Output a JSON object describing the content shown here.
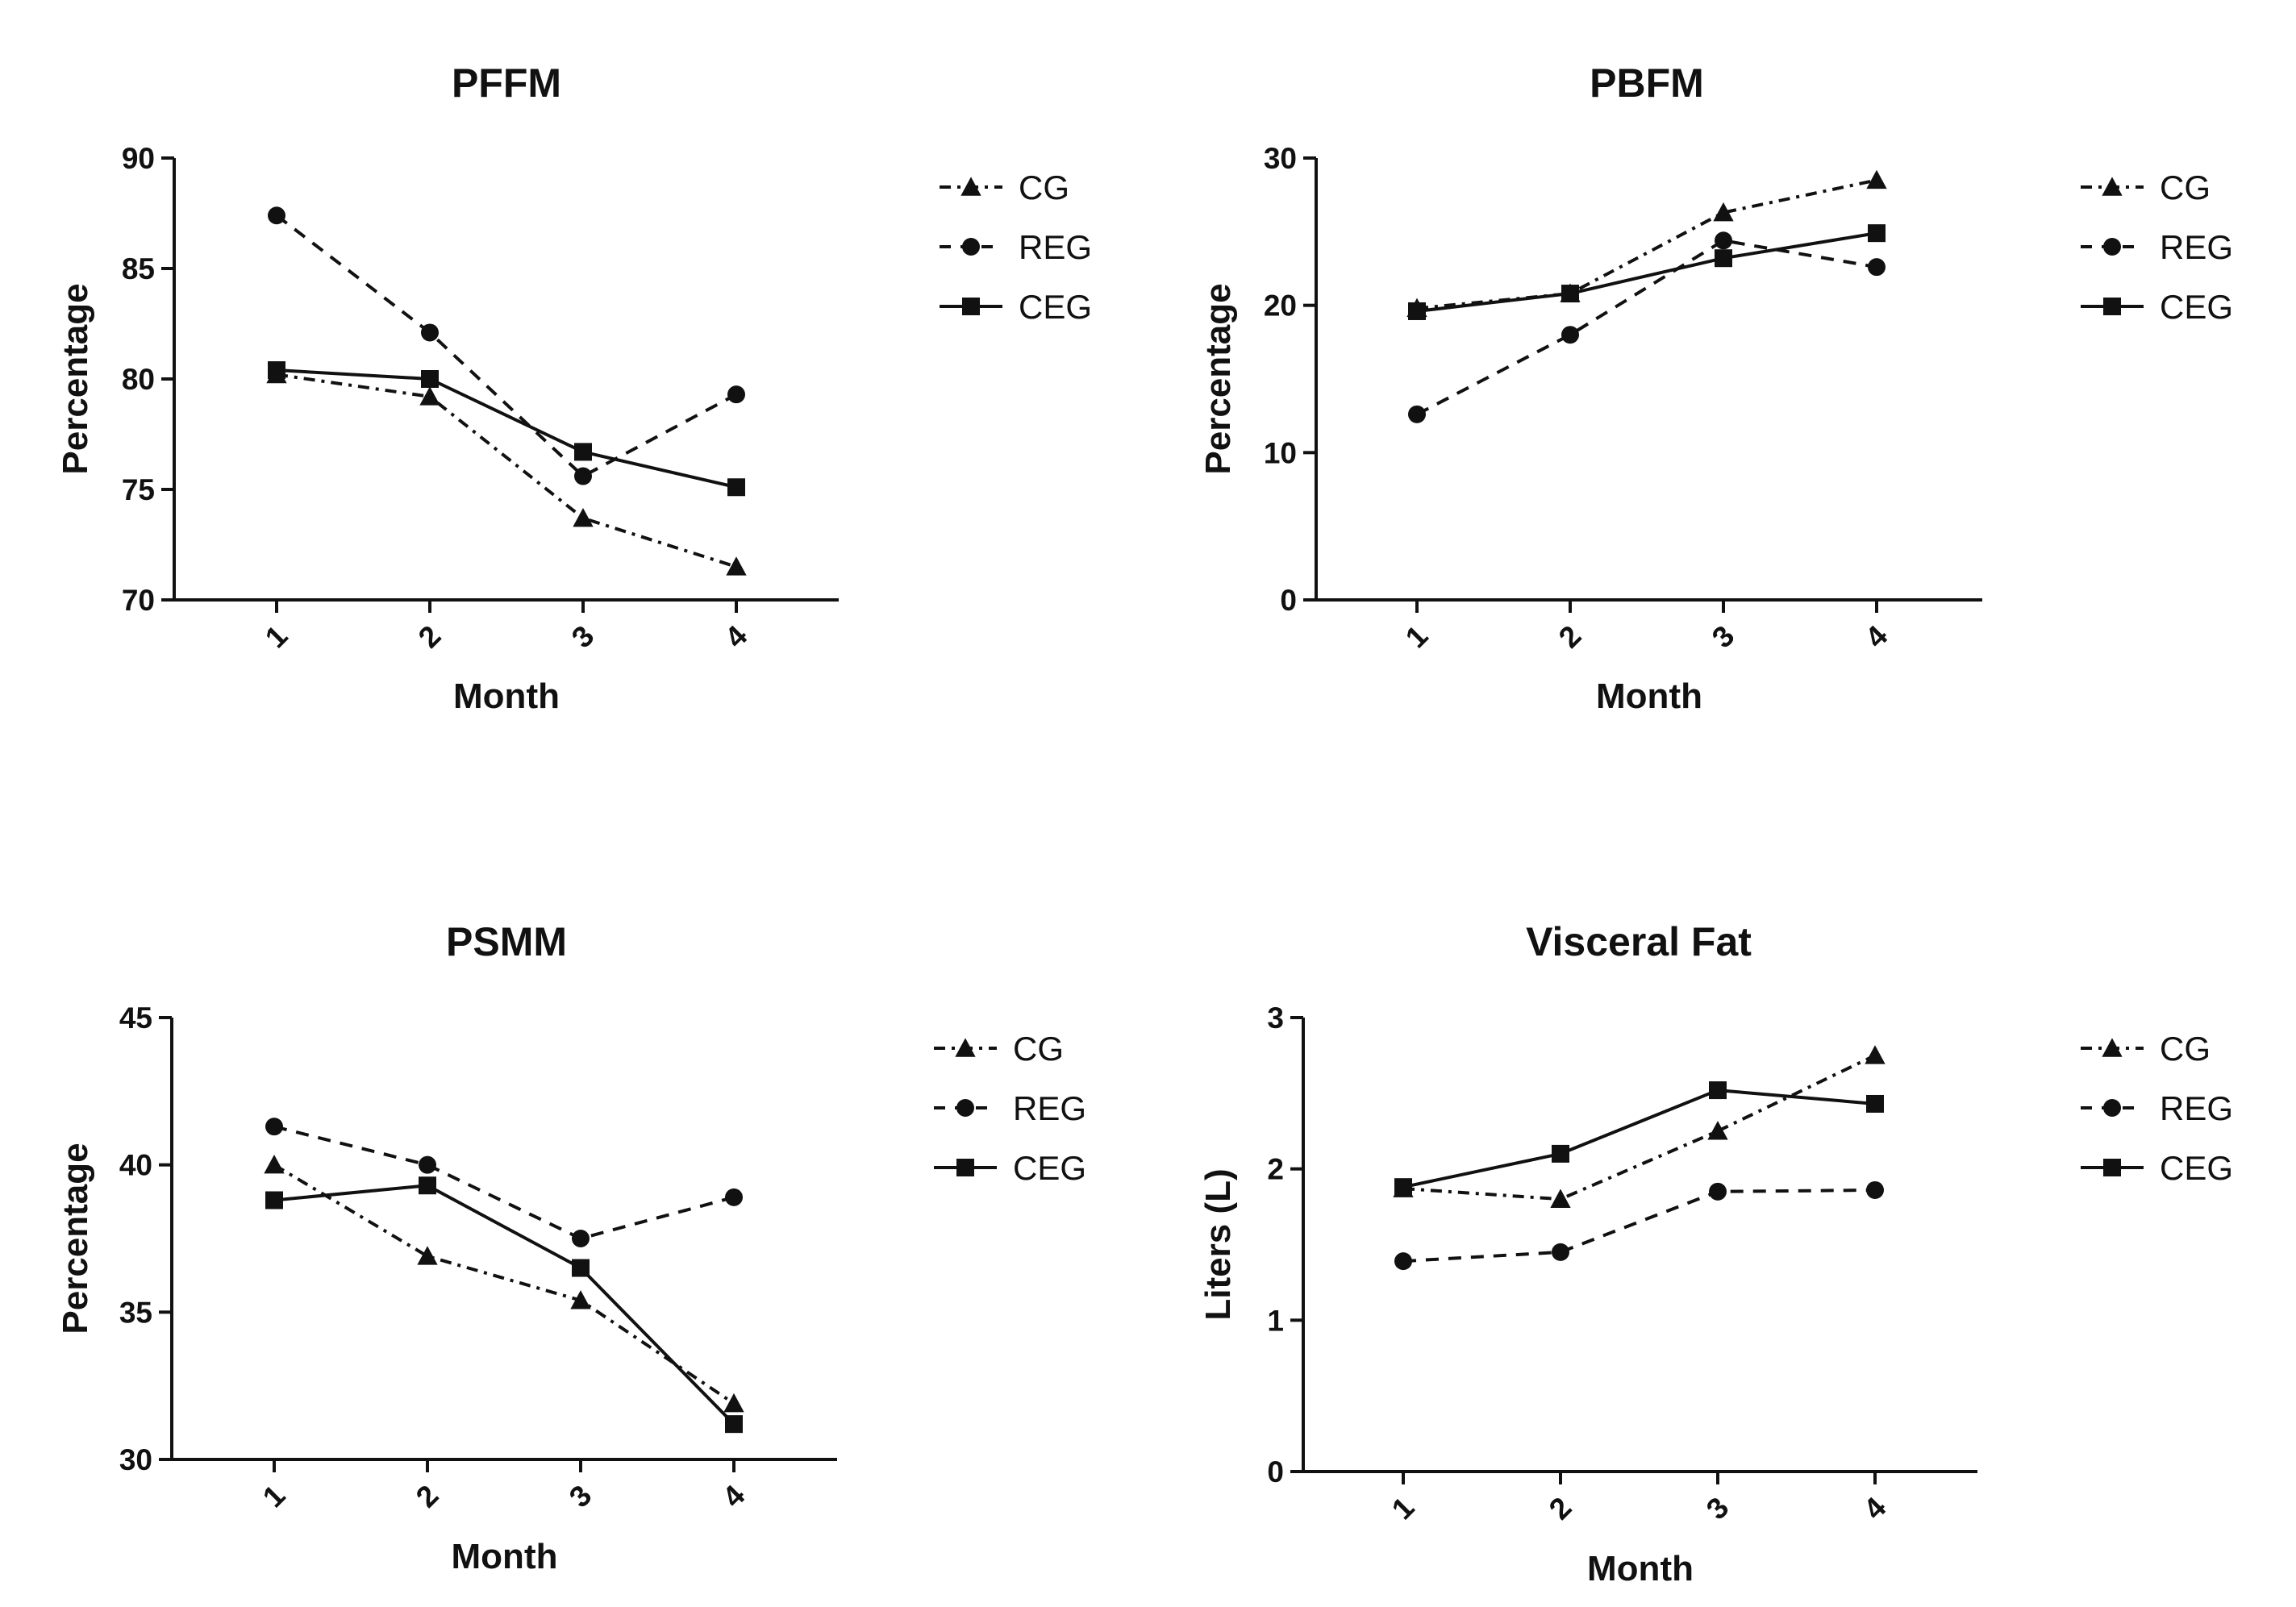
{
  "chart_data": [
    {
      "type": "line",
      "title": "PFFM",
      "xlabel": "Month",
      "ylabel": "Percentage",
      "categories": [
        "1",
        "2",
        "3",
        "4"
      ],
      "ylim": [
        70,
        90
      ],
      "yticks": [
        70,
        75,
        80,
        85,
        90
      ],
      "grid": false,
      "legend_position": "right",
      "series": [
        {
          "name": "CG",
          "marker": "triangle",
          "dash": "dashdot",
          "values": [
            80.2,
            79.2,
            73.7,
            71.5
          ]
        },
        {
          "name": "REG",
          "marker": "circle",
          "dash": "dashed",
          "values": [
            87.4,
            82.1,
            75.6,
            79.3
          ]
        },
        {
          "name": "CEG",
          "marker": "square",
          "dash": "solid",
          "values": [
            80.4,
            80.0,
            76.7,
            75.1
          ]
        }
      ]
    },
    {
      "type": "line",
      "title": "PBFM",
      "xlabel": "Month",
      "ylabel": "Percentage",
      "categories": [
        "1",
        "2",
        "3",
        "4"
      ],
      "ylim": [
        0,
        30
      ],
      "yticks": [
        0,
        10,
        20,
        30
      ],
      "grid": false,
      "legend_position": "right",
      "series": [
        {
          "name": "CG",
          "marker": "triangle",
          "dash": "dashdot",
          "values": [
            19.8,
            20.8,
            26.3,
            28.5
          ]
        },
        {
          "name": "REG",
          "marker": "circle",
          "dash": "dashed",
          "values": [
            12.6,
            18.0,
            24.4,
            22.6
          ]
        },
        {
          "name": "CEG",
          "marker": "square",
          "dash": "solid",
          "values": [
            19.6,
            20.8,
            23.2,
            24.9
          ]
        }
      ]
    },
    {
      "type": "line",
      "title": "PSMM",
      "xlabel": "Month",
      "ylabel": "Percentage",
      "categories": [
        "1",
        "2",
        "3",
        "4"
      ],
      "ylim": [
        30,
        45
      ],
      "yticks": [
        30,
        35,
        40,
        45
      ],
      "grid": false,
      "legend_position": "right",
      "series": [
        {
          "name": "CG",
          "marker": "triangle",
          "dash": "dashdot",
          "values": [
            40.0,
            36.9,
            35.4,
            31.9
          ]
        },
        {
          "name": "REG",
          "marker": "circle",
          "dash": "dashed",
          "values": [
            41.3,
            40.0,
            37.5,
            38.9
          ]
        },
        {
          "name": "CEG",
          "marker": "square",
          "dash": "solid",
          "values": [
            38.8,
            39.3,
            36.5,
            31.2
          ]
        }
      ]
    },
    {
      "type": "line",
      "title": "Visceral Fat",
      "xlabel": "Month",
      "ylabel": "Liters  (L)",
      "categories": [
        "1",
        "2",
        "3",
        "4"
      ],
      "ylim": [
        0,
        3
      ],
      "yticks": [
        0,
        1,
        2,
        3
      ],
      "grid": false,
      "legend_position": "right",
      "series": [
        {
          "name": "CG",
          "marker": "triangle",
          "dash": "dashdot",
          "values": [
            1.87,
            1.8,
            2.25,
            2.75
          ]
        },
        {
          "name": "REG",
          "marker": "circle",
          "dash": "dashed",
          "values": [
            1.39,
            1.45,
            1.85,
            1.86
          ]
        },
        {
          "name": "CEG",
          "marker": "square",
          "dash": "solid",
          "values": [
            1.88,
            2.1,
            2.52,
            2.43
          ]
        }
      ]
    }
  ]
}
